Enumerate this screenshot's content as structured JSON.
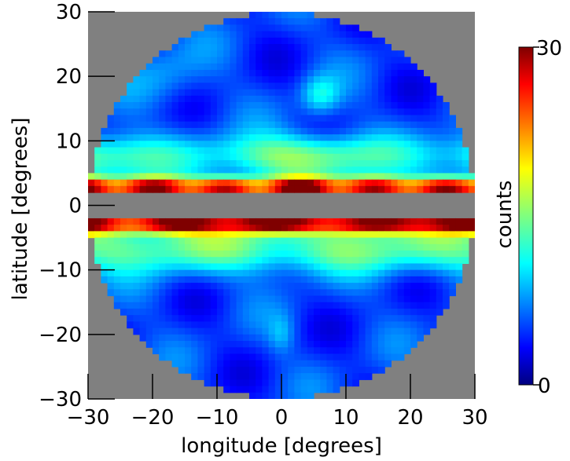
{
  "chart_data": {
    "type": "heatmap",
    "xlabel": "longitude [degrees]",
    "ylabel": "latitude [degrees]",
    "xlim": [
      -30,
      30
    ],
    "ylim": [
      -30,
      30
    ],
    "x_ticks": [
      -30,
      -20,
      -10,
      0,
      10,
      20,
      30
    ],
    "y_ticks": [
      -30,
      -20,
      -10,
      0,
      10,
      20,
      30
    ],
    "x_tick_labels": [
      "−30",
      "−20",
      "−10",
      "0",
      "10",
      "20",
      "30"
    ],
    "y_tick_labels": [
      "−30",
      "−20",
      "−10",
      "0",
      "10",
      "20",
      "30"
    ],
    "colorbar": {
      "label": "counts",
      "min": 0,
      "max": 30,
      "min_label": "0",
      "max_label": "30",
      "colormap": "jet"
    },
    "region": {
      "shape": "disk",
      "center": [
        0,
        0
      ],
      "radius_deg": 30,
      "masked_band_latitude": [
        -2,
        2
      ]
    },
    "background_color": "#808080",
    "features": [
      {
        "name": "galactic plane band north",
        "latitude": 3,
        "value_range": [
          20,
          30
        ]
      },
      {
        "name": "galactic plane band south",
        "latitude": -3,
        "value_range": [
          20,
          30
        ]
      },
      {
        "name": "high-latitude filament",
        "longitude": 6,
        "latitude": 17,
        "value": 15
      }
    ]
  },
  "colors": {
    "background": "#808080",
    "jet_low": "#00007f",
    "jet_high": "#7f0000"
  }
}
